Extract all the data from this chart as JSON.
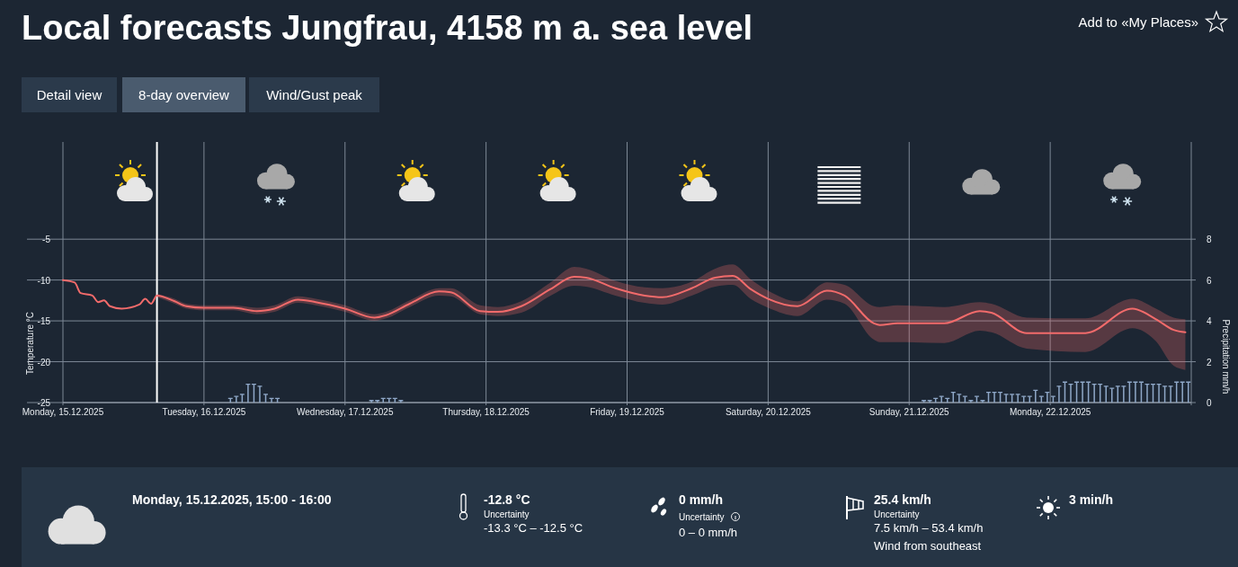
{
  "chart_data": [
    {
      "type": "line",
      "title": "Local forecasts Jungfrau, 4158 m a. sea level",
      "ylabel": "Temperature °C",
      "y2label": "Precipitation mm/h",
      "annotations": [
        "Detail view",
        "8-day overview",
        "Wind/Gust peak",
        "Add to «My Places»"
      ],
      "xlim": [
        "2025-12-15T00:00",
        "2025-12-23T00:00"
      ],
      "xticks": [
        {
          "value": "2025-12-15T00:00",
          "label": "Monday, 15.12.2025"
        },
        {
          "value": "2025-12-16T00:00",
          "label": "Tuesday, 16.12.2025"
        },
        {
          "value": "2025-12-17T00:00",
          "label": "Wednesday, 17.12.2025"
        },
        {
          "value": "2025-12-18T00:00",
          "label": "Thursday, 18.12.2025"
        },
        {
          "value": "2025-12-19T00:00",
          "label": "Friday, 19.12.2025"
        },
        {
          "value": "2025-12-20T00:00",
          "label": "Saturday, 20.12.2025"
        },
        {
          "value": "2025-12-21T00:00",
          "label": "Sunday, 21.12.2025"
        },
        {
          "value": "2025-12-22T00:00",
          "label": "Monday, 22.12.2025"
        }
      ],
      "ylim": [
        -25,
        6.9
      ],
      "yticks": [
        -5,
        -10,
        -15,
        -20,
        -25
      ],
      "y2lim": [
        0,
        12.75
      ],
      "y2ticks": [
        0,
        2,
        4,
        6,
        8
      ],
      "grid": true,
      "ref_lines": [
        {
          "axis": "x",
          "value": "2025-12-15T16:00",
          "color": "#ffffff"
        }
      ],
      "series": [
        {
          "type": "line",
          "color": "#f26b6b",
          "x": [
            "2025-12-15T00:00",
            "2025-12-15T02:00",
            "2025-12-15T03:00",
            "2025-12-15T05:00",
            "2025-12-15T06:00",
            "2025-12-15T07:00",
            "2025-12-15T08:00",
            "2025-12-15T10:00",
            "2025-12-15T13:00",
            "2025-12-15T14:00",
            "2025-12-15T15:00",
            "2025-12-15T16:00",
            "2025-12-15T19:00",
            "2025-12-15T21:00",
            "2025-12-16T00:00",
            "2025-12-16T05:00",
            "2025-12-16T09:00",
            "2025-12-16T12:00",
            "2025-12-16T16:00",
            "2025-12-16T19:00",
            "2025-12-17T00:00",
            "2025-12-17T05:00",
            "2025-12-17T07:00",
            "2025-12-17T11:00",
            "2025-12-17T16:00",
            "2025-12-17T18:00",
            "2025-12-17T23:00",
            "2025-12-18T02:00",
            "2025-12-18T06:00",
            "2025-12-18T11:00",
            "2025-12-18T15:00",
            "2025-12-18T17:00",
            "2025-12-18T22:00",
            "2025-12-19T03:00",
            "2025-12-19T06:00",
            "2025-12-19T11:00",
            "2025-12-19T15:00",
            "2025-12-19T18:00",
            "2025-12-19T21:00",
            "2025-12-20T00:00",
            "2025-12-20T05:00",
            "2025-12-20T10:00",
            "2025-12-20T13:00",
            "2025-12-20T18:00",
            "2025-12-20T19:00",
            "2025-12-20T22:00",
            "2025-12-21T06:00",
            "2025-12-21T12:00",
            "2025-12-21T14:00",
            "2025-12-21T20:00",
            "2025-12-22T06:00",
            "2025-12-22T14:00",
            "2025-12-22T18:00",
            "2025-12-22T21:00",
            "2025-12-22T23:00"
          ],
          "values": [
            -10.0,
            -10.3,
            -11.6,
            -11.9,
            -12.7,
            -12.5,
            -13.2,
            -13.5,
            -13.0,
            -12.3,
            -12.9,
            -11.9,
            -12.6,
            -13.2,
            -13.4,
            -13.4,
            -13.8,
            -13.5,
            -12.4,
            -12.7,
            -13.5,
            -14.6,
            -14.3,
            -12.9,
            -11.4,
            -11.5,
            -13.8,
            -13.9,
            -13.2,
            -11.1,
            -9.6,
            -9.7,
            -11.0,
            -11.9,
            -12.1,
            -11.0,
            -9.7,
            -9.5,
            -11.1,
            -12.3,
            -13.2,
            -11.3,
            -11.9,
            -15.3,
            -15.5,
            -15.3,
            -15.3,
            -13.8,
            -14.0,
            -16.5,
            -16.5,
            -13.5,
            -14.8,
            -16.1,
            -16.4
          ],
          "upper": [
            null,
            null,
            null,
            null,
            null,
            null,
            null,
            null,
            null,
            null,
            null,
            -11.7,
            -12.3,
            -12.9,
            -13.1,
            -13.1,
            -13.4,
            -13.1,
            -12.0,
            -12.3,
            -13.1,
            -14.2,
            -13.9,
            -12.5,
            -11.0,
            -11.0,
            -13.1,
            -13.3,
            -12.6,
            -10.3,
            -8.4,
            -8.6,
            -10.1,
            -10.9,
            -11.0,
            -10.2,
            -8.6,
            -8.1,
            -9.9,
            -11.3,
            -12.6,
            -10.3,
            -10.6,
            -13.2,
            -13.3,
            -13.1,
            -13.3,
            -12.7,
            -12.9,
            -14.6,
            -14.7,
            -12.3,
            -13.5,
            -14.6,
            -14.8
          ],
          "lower": [
            null,
            null,
            null,
            null,
            null,
            null,
            null,
            null,
            null,
            null,
            null,
            -12.1,
            -12.9,
            -13.5,
            -13.7,
            -13.7,
            -14.2,
            -13.9,
            -12.8,
            -13.1,
            -13.9,
            -15.0,
            -14.7,
            -13.3,
            -11.9,
            -12.0,
            -14.2,
            -14.4,
            -14.0,
            -11.9,
            -10.7,
            -10.8,
            -11.9,
            -12.8,
            -13.0,
            -11.9,
            -10.8,
            -10.6,
            -12.3,
            -13.4,
            -14.4,
            -12.4,
            -12.9,
            -17.3,
            -17.6,
            -17.6,
            -17.7,
            -16.2,
            -16.4,
            -18.4,
            -18.8,
            -15.9,
            -17.5,
            -20.5,
            -21.0
          ]
        },
        {
          "type": "bar",
          "axis": "y2",
          "color": "#8fa8c8",
          "x": [
            "2025-12-16T04:30",
            "2025-12-16T05:30",
            "2025-12-16T06:30",
            "2025-12-16T07:30",
            "2025-12-16T08:30",
            "2025-12-16T09:30",
            "2025-12-16T10:30",
            "2025-12-16T11:30",
            "2025-12-16T12:30",
            "2025-12-17T04:30",
            "2025-12-17T05:30",
            "2025-12-17T06:30",
            "2025-12-17T07:30",
            "2025-12-17T08:30",
            "2025-12-17T09:30",
            "2025-12-21T02:30",
            "2025-12-21T03:30",
            "2025-12-21T04:30",
            "2025-12-21T05:30",
            "2025-12-21T06:30",
            "2025-12-21T07:30",
            "2025-12-21T08:30",
            "2025-12-21T09:30",
            "2025-12-21T10:30",
            "2025-12-21T11:30",
            "2025-12-21T12:30",
            "2025-12-21T13:30",
            "2025-12-21T14:30",
            "2025-12-21T15:30",
            "2025-12-21T16:30",
            "2025-12-21T17:30",
            "2025-12-21T18:30",
            "2025-12-21T19:30",
            "2025-12-21T20:30",
            "2025-12-21T21:30",
            "2025-12-21T22:30",
            "2025-12-21T23:30",
            "2025-12-22T00:30",
            "2025-12-22T01:30",
            "2025-12-22T02:30",
            "2025-12-22T03:30",
            "2025-12-22T04:30",
            "2025-12-22T05:30",
            "2025-12-22T06:30",
            "2025-12-22T07:30",
            "2025-12-22T08:30",
            "2025-12-22T09:30",
            "2025-12-22T10:30",
            "2025-12-22T11:30",
            "2025-12-22T12:30",
            "2025-12-22T13:30",
            "2025-12-22T14:30",
            "2025-12-22T15:30",
            "2025-12-22T16:30",
            "2025-12-22T17:30",
            "2025-12-22T18:30",
            "2025-12-22T19:30",
            "2025-12-22T20:30",
            "2025-12-22T21:30",
            "2025-12-22T22:30",
            "2025-12-22T23:30"
          ],
          "values": [
            0.2,
            0.3,
            0.4,
            0.9,
            0.9,
            0.8,
            0.4,
            0.2,
            0.2,
            0.1,
            0.1,
            0.2,
            0.2,
            0.2,
            0.1,
            0.1,
            0.1,
            0.2,
            0.3,
            0.2,
            0.5,
            0.4,
            0.3,
            0.1,
            0.3,
            0.1,
            0.5,
            0.5,
            0.5,
            0.4,
            0.4,
            0.4,
            0.3,
            0.3,
            0.6,
            0.3,
            0.5,
            0.3,
            0.8,
            1.0,
            0.9,
            1.0,
            1.0,
            1.0,
            0.9,
            0.9,
            0.8,
            0.7,
            0.8,
            0.8,
            1.0,
            1.0,
            1.0,
            0.9,
            0.9,
            0.9,
            0.8,
            0.8,
            1.0,
            1.0,
            1.0
          ]
        }
      ]
    },
    {
      "type": "other",
      "title": "Monday, 15.12.2025, 15:00 - 16:00",
      "annotations": [
        "-12.8 °C",
        "Uncertainty",
        "-13.3 °C – -12.5 °C",
        "0 mm/h",
        "Uncertainty",
        "0 – 0 mm/h",
        "25.4 km/h",
        "Uncertainty",
        "7.5 km/h – 53.4 km/h",
        "Wind from southeast",
        "3 min/h"
      ]
    }
  ]
}
